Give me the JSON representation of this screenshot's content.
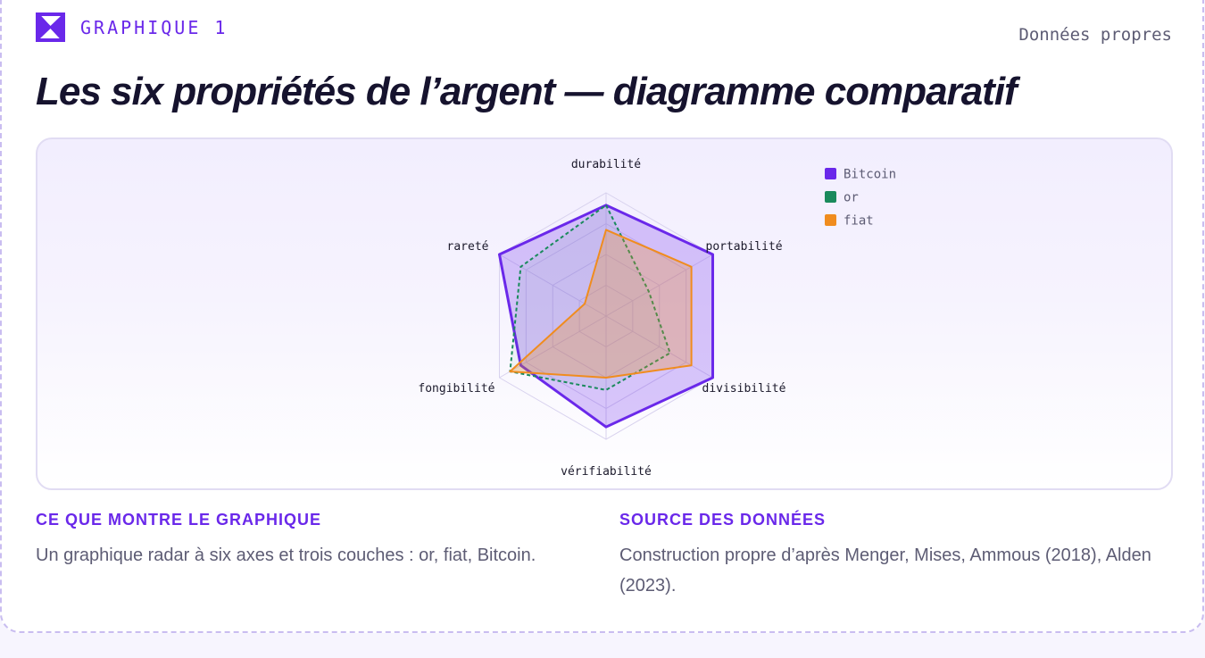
{
  "header": {
    "badge_label": "GRAPHIQUE 1",
    "badge_icon": "x-logo-icon",
    "meta": "Données propres",
    "title": "Les six propriétés de l’argent — diagramme comparatif"
  },
  "colors": {
    "accent": "#6a28ea",
    "bitcoin": "#6a28ea",
    "or": "#1a8a5c",
    "fiat": "#f08c1e"
  },
  "chart_data": {
    "type": "radar",
    "axes": [
      "durabilité",
      "portabilité",
      "divisibilité",
      "vérifiabilité",
      "fongibilité",
      "rareté"
    ],
    "range": [
      0,
      10
    ],
    "grid": true,
    "grid_rings": 4,
    "legend_position": "top-right",
    "series": [
      {
        "name": "Bitcoin",
        "values": [
          9,
          10,
          10,
          9,
          8,
          10
        ],
        "color": "#6a28ea",
        "style": "solid"
      },
      {
        "name": "or",
        "values": [
          9,
          4,
          6,
          6,
          9,
          8
        ],
        "color": "#1a8a5c",
        "style": "dashed"
      },
      {
        "name": "fiat",
        "values": [
          7,
          8,
          8,
          5,
          9,
          2
        ],
        "color": "#f08c1e",
        "style": "solid"
      }
    ]
  },
  "notes": {
    "left_heading": "CE QUE MONTRE LE GRAPHIQUE",
    "left_body": "Un graphique radar à six axes et trois couches : or, fiat, Bitcoin.",
    "right_heading": "SOURCE DES DONNÉES",
    "right_body": "Construction propre d’après Menger, Mises, Ammous (2018), Alden (2023)."
  }
}
